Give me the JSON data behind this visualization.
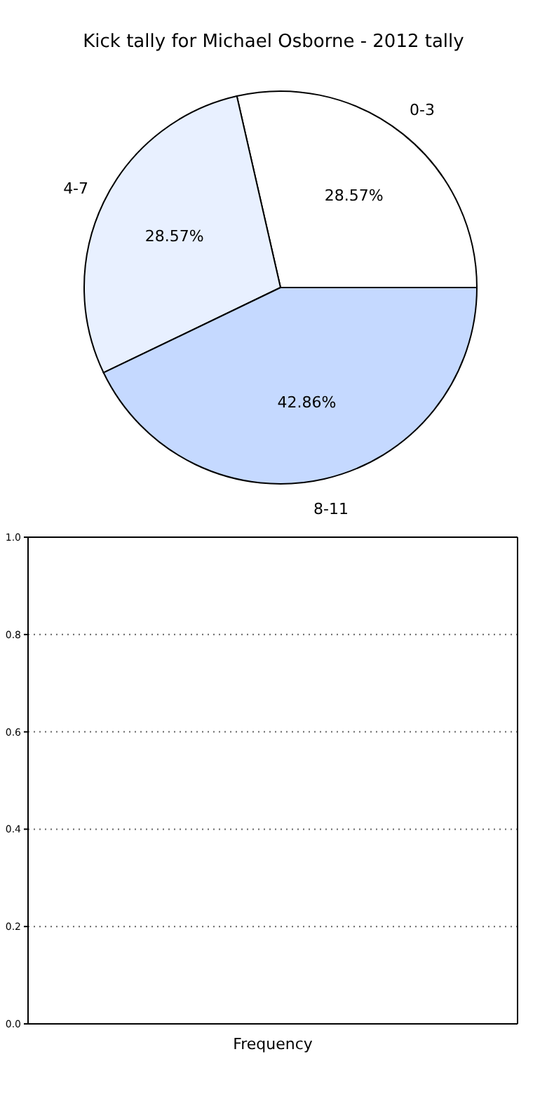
{
  "chart_data": [
    {
      "type": "pie",
      "title": "Kick tally for Michael Osborne - 2012 tally",
      "categories": [
        "0-3",
        "4-7",
        "8-11"
      ],
      "values": [
        28.57,
        28.57,
        42.86
      ],
      "colors": [
        "#ffffff",
        "#e8f0ff",
        "#c5d9ff"
      ],
      "value_labels": [
        "28.57%",
        "28.57%",
        "42.86%"
      ]
    },
    {
      "type": "bar",
      "xlabel": "Frequency",
      "categories": [
        null
      ],
      "values": [
        null
      ],
      "ylim": [
        0,
        1
      ],
      "yticks": [
        {
          "value": 0,
          "label": "0.0"
        },
        {
          "value": 0.2,
          "label": "0.2"
        },
        {
          "value": 0.4,
          "label": "0.4"
        },
        {
          "value": 0.6,
          "label": "0.6"
        },
        {
          "value": 0.8,
          "label": "0.8"
        },
        {
          "value": 1,
          "label": "1.0"
        }
      ],
      "grid": "y",
      "tick_labels": "y"
    }
  ]
}
